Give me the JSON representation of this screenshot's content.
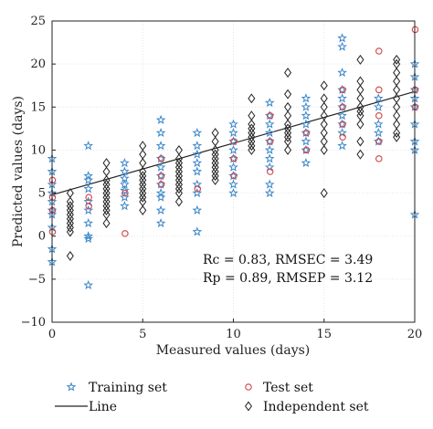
{
  "chart_data": {
    "type": "scatter",
    "title": "",
    "xlabel": "Measured values (days)",
    "ylabel": "Predicted values (days)",
    "xlim": [
      0,
      20
    ],
    "ylim": [
      -10,
      25
    ],
    "xticks": [
      0,
      5,
      10,
      15,
      20
    ],
    "yticks": [
      -10,
      -5,
      0,
      5,
      10,
      15,
      20,
      25
    ],
    "grid": true,
    "legend_position": "bottom",
    "annotations": [
      "Rc = 0.83, RMSEC = 3.49",
      "Rp = 0.89, RMSEP = 3.12"
    ],
    "series": [
      {
        "name": "Training set",
        "marker": "star",
        "color": "#3a86c8",
        "points": [
          [
            0,
            -3
          ],
          [
            0,
            9
          ],
          [
            0,
            7.5
          ],
          [
            0,
            6
          ],
          [
            0,
            5
          ],
          [
            0,
            4
          ],
          [
            0,
            3
          ],
          [
            0,
            2.5
          ],
          [
            0,
            1
          ],
          [
            0,
            -1.5
          ],
          [
            2,
            -5.7
          ],
          [
            2,
            10.5
          ],
          [
            2,
            7
          ],
          [
            2,
            6.5
          ],
          [
            2,
            5.5
          ],
          [
            2,
            4
          ],
          [
            2,
            3
          ],
          [
            2,
            1.5
          ],
          [
            2,
            0
          ],
          [
            2,
            -0.3
          ],
          [
            4,
            8.5
          ],
          [
            4,
            7.5
          ],
          [
            4,
            6.7
          ],
          [
            4,
            6
          ],
          [
            4,
            5.3
          ],
          [
            4,
            4.5
          ],
          [
            4,
            3.5
          ],
          [
            6,
            13.5
          ],
          [
            6,
            12
          ],
          [
            6,
            10.5
          ],
          [
            6,
            9
          ],
          [
            6,
            8
          ],
          [
            6,
            7
          ],
          [
            6,
            6
          ],
          [
            6,
            5
          ],
          [
            6,
            4.5
          ],
          [
            6,
            3
          ],
          [
            6,
            1.5
          ],
          [
            8,
            12
          ],
          [
            8,
            10.5
          ],
          [
            8,
            9.5
          ],
          [
            8,
            8.5
          ],
          [
            8,
            7.5
          ],
          [
            8,
            6
          ],
          [
            8,
            5
          ],
          [
            8,
            3
          ],
          [
            8,
            0.5
          ],
          [
            10,
            13
          ],
          [
            10,
            12
          ],
          [
            10,
            11
          ],
          [
            10,
            10
          ],
          [
            10,
            9
          ],
          [
            10,
            8
          ],
          [
            10,
            7
          ],
          [
            10,
            6
          ],
          [
            10,
            5
          ],
          [
            12,
            15.5
          ],
          [
            12,
            14
          ],
          [
            12,
            13
          ],
          [
            12,
            12
          ],
          [
            12,
            11
          ],
          [
            12,
            10
          ],
          [
            12,
            9
          ],
          [
            12,
            8
          ],
          [
            12,
            6
          ],
          [
            12,
            5
          ],
          [
            14,
            16
          ],
          [
            14,
            15
          ],
          [
            14,
            14
          ],
          [
            14,
            13
          ],
          [
            14,
            12
          ],
          [
            14,
            11
          ],
          [
            14,
            10
          ],
          [
            14,
            8.5
          ],
          [
            16,
            23
          ],
          [
            16,
            22
          ],
          [
            16,
            19
          ],
          [
            16,
            17
          ],
          [
            16,
            16
          ],
          [
            16,
            15
          ],
          [
            16,
            14
          ],
          [
            16,
            13
          ],
          [
            16,
            12
          ],
          [
            16,
            10.5
          ],
          [
            18,
            16
          ],
          [
            18,
            15
          ],
          [
            18,
            13
          ],
          [
            18,
            12
          ],
          [
            18,
            11
          ],
          [
            20,
            20
          ],
          [
            20,
            18.5
          ],
          [
            20,
            17
          ],
          [
            20,
            16
          ],
          [
            20,
            15
          ],
          [
            20,
            13
          ],
          [
            20,
            11
          ],
          [
            20,
            10
          ],
          [
            20,
            2.5
          ]
        ]
      },
      {
        "name": "Test set",
        "marker": "circle",
        "color": "#d04545",
        "points": [
          [
            0,
            6.5
          ],
          [
            0,
            4.5
          ],
          [
            0,
            3
          ],
          [
            0,
            0.5
          ],
          [
            2,
            4.5
          ],
          [
            2,
            3.5
          ],
          [
            4,
            5
          ],
          [
            4,
            0.3
          ],
          [
            6,
            9
          ],
          [
            6,
            7
          ],
          [
            6,
            6
          ],
          [
            8,
            5.5
          ],
          [
            10,
            11
          ],
          [
            10,
            9
          ],
          [
            10,
            7
          ],
          [
            12,
            14
          ],
          [
            12,
            11
          ],
          [
            12,
            7.5
          ],
          [
            14,
            12
          ],
          [
            14,
            10
          ],
          [
            16,
            17
          ],
          [
            16,
            15
          ],
          [
            16,
            13
          ],
          [
            16,
            11.5
          ],
          [
            18,
            21.5
          ],
          [
            18,
            17
          ],
          [
            18,
            14
          ],
          [
            18,
            11
          ],
          [
            18,
            9
          ],
          [
            20,
            24
          ],
          [
            20,
            17
          ],
          [
            20,
            15
          ]
        ]
      },
      {
        "name": "Independent set",
        "marker": "diamond",
        "color": "#222222",
        "points": [
          [
            1,
            5
          ],
          [
            1,
            4
          ],
          [
            1,
            3.5
          ],
          [
            1,
            3
          ],
          [
            1,
            2.5
          ],
          [
            1,
            2
          ],
          [
            1,
            1.5
          ],
          [
            1,
            1
          ],
          [
            1,
            0.5
          ],
          [
            1,
            -2.3
          ],
          [
            3,
            8.5
          ],
          [
            3,
            7.5
          ],
          [
            3,
            6.5
          ],
          [
            3,
            6
          ],
          [
            3,
            5.5
          ],
          [
            3,
            5
          ],
          [
            3,
            4.5
          ],
          [
            3,
            4
          ],
          [
            3,
            3.5
          ],
          [
            3,
            3
          ],
          [
            3,
            2.5
          ],
          [
            3,
            1.5
          ],
          [
            5,
            10.5
          ],
          [
            5,
            9.5
          ],
          [
            5,
            8.5
          ],
          [
            5,
            7.5
          ],
          [
            5,
            7
          ],
          [
            5,
            6.5
          ],
          [
            5,
            6
          ],
          [
            5,
            5.5
          ],
          [
            5,
            5
          ],
          [
            5,
            4.5
          ],
          [
            5,
            4
          ],
          [
            5,
            3
          ],
          [
            7,
            10
          ],
          [
            7,
            9
          ],
          [
            7,
            8.5
          ],
          [
            7,
            8
          ],
          [
            7,
            7.5
          ],
          [
            7,
            7
          ],
          [
            7,
            6.5
          ],
          [
            7,
            6
          ],
          [
            7,
            5.5
          ],
          [
            7,
            5
          ],
          [
            7,
            4
          ],
          [
            9,
            12
          ],
          [
            9,
            11
          ],
          [
            9,
            10
          ],
          [
            9,
            9.5
          ],
          [
            9,
            9
          ],
          [
            9,
            8.5
          ],
          [
            9,
            8
          ],
          [
            9,
            7.5
          ],
          [
            9,
            7
          ],
          [
            9,
            6.5
          ],
          [
            11,
            16
          ],
          [
            11,
            14
          ],
          [
            11,
            13
          ],
          [
            11,
            12.5
          ],
          [
            11,
            12
          ],
          [
            11,
            11.5
          ],
          [
            11,
            11
          ],
          [
            11,
            10.5
          ],
          [
            11,
            10
          ],
          [
            13,
            19
          ],
          [
            13,
            16.5
          ],
          [
            13,
            15
          ],
          [
            13,
            14
          ],
          [
            13,
            13
          ],
          [
            13,
            12.5
          ],
          [
            13,
            12
          ],
          [
            13,
            11.5
          ],
          [
            13,
            11
          ],
          [
            13,
            10
          ],
          [
            15,
            17.5
          ],
          [
            15,
            16
          ],
          [
            15,
            15
          ],
          [
            15,
            14
          ],
          [
            15,
            13
          ],
          [
            15,
            12
          ],
          [
            15,
            11
          ],
          [
            15,
            10
          ],
          [
            15,
            5
          ],
          [
            17,
            20.5
          ],
          [
            17,
            18
          ],
          [
            17,
            17
          ],
          [
            17,
            16
          ],
          [
            17,
            15
          ],
          [
            17,
            14.5
          ],
          [
            17,
            14
          ],
          [
            17,
            13
          ],
          [
            17,
            11
          ],
          [
            17,
            9.5
          ],
          [
            19,
            20.5
          ],
          [
            19,
            20
          ],
          [
            19,
            19
          ],
          [
            19,
            18
          ],
          [
            19,
            17
          ],
          [
            19,
            16
          ],
          [
            19,
            15
          ],
          [
            19,
            14
          ],
          [
            19,
            13
          ],
          [
            19,
            12
          ],
          [
            19,
            11.5
          ]
        ]
      },
      {
        "name": "Line",
        "marker": "line",
        "color": "#222222",
        "points": [
          [
            0,
            4.8
          ],
          [
            20,
            16.8
          ]
        ]
      }
    ]
  }
}
